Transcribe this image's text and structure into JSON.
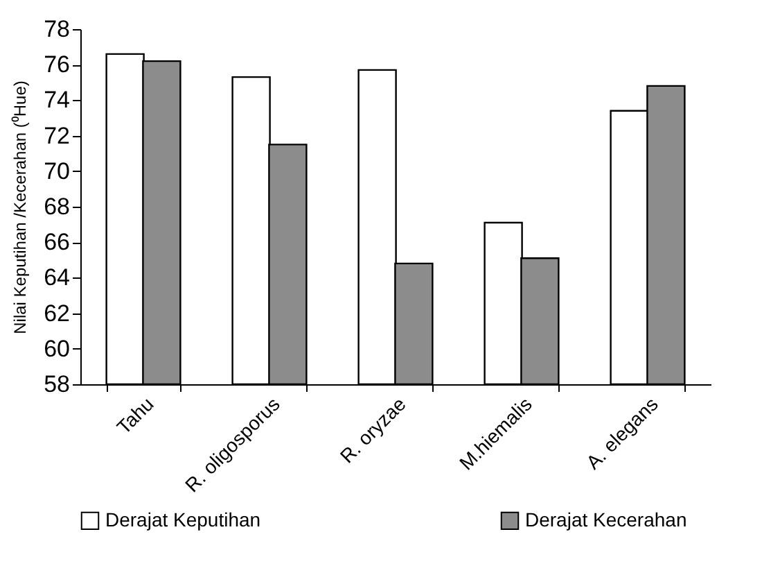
{
  "chart_data": {
    "type": "bar",
    "ylabel": "Nilai  Keputihan /Kecerahan (⁰Hue)",
    "categories": [
      "Tahu",
      "R. oligosporus",
      "R. oryzae",
      "M.hiemalis",
      "A. elegans"
    ],
    "series": [
      {
        "name": "Derajat Keputihan",
        "color": "#ffffff",
        "values": [
          76.6,
          75.3,
          75.7,
          67.1,
          73.4
        ]
      },
      {
        "name": "Derajat Kecerahan",
        "color": "#8c8c8c",
        "values": [
          76.2,
          71.5,
          64.8,
          65.1,
          74.8
        ]
      }
    ],
    "ylim": [
      58,
      78
    ],
    "yticks": [
      58,
      60,
      62,
      64,
      66,
      68,
      70,
      72,
      74,
      76,
      78
    ],
    "grid": false,
    "legend": "bottom"
  }
}
